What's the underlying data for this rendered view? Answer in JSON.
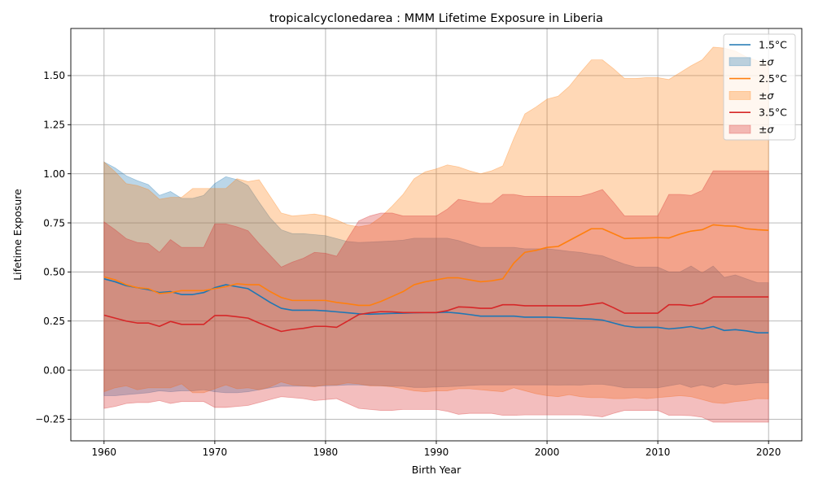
{
  "chart_data": {
    "type": "area",
    "title": "tropicalcyclonedarea : MMM Lifetime Exposure in Liberia",
    "xlabel": "Birth Year",
    "ylabel": "Lifetime Exposure",
    "xlim": [
      1957,
      2023
    ],
    "ylim": [
      -0.36,
      1.74
    ],
    "xticks": [
      1960,
      1970,
      1980,
      1990,
      2000,
      2010,
      2020
    ],
    "yticks": [
      -0.25,
      0.0,
      0.25,
      0.5,
      0.75,
      1.0,
      1.25,
      1.5
    ],
    "yticklabels": [
      "−0.25",
      "0.00",
      "0.25",
      "0.50",
      "0.75",
      "1.00",
      "1.25",
      "1.50"
    ],
    "grid": true,
    "legend_position": "top-right",
    "x": [
      1960,
      1961,
      1962,
      1963,
      1964,
      1965,
      1966,
      1967,
      1968,
      1969,
      1970,
      1971,
      1972,
      1973,
      1974,
      1975,
      1976,
      1977,
      1978,
      1979,
      1980,
      1981,
      1982,
      1983,
      1984,
      1985,
      1986,
      1987,
      1988,
      1989,
      1990,
      1991,
      1992,
      1993,
      1994,
      1995,
      1996,
      1997,
      1998,
      1999,
      2000,
      2001,
      2002,
      2003,
      2004,
      2005,
      2006,
      2007,
      2008,
      2009,
      2010,
      2011,
      2012,
      2013,
      2014,
      2015,
      2016,
      2017,
      2018,
      2019,
      2020
    ],
    "series": [
      {
        "name": "1.5°C",
        "band_name": "±σ",
        "color": "#1f77b4",
        "values": [
          0.465,
          0.45,
          0.43,
          0.42,
          0.41,
          0.395,
          0.4,
          0.385,
          0.385,
          0.395,
          0.42,
          0.435,
          0.425,
          0.415,
          0.38,
          0.345,
          0.315,
          0.305,
          0.305,
          0.305,
          0.302,
          0.297,
          0.292,
          0.287,
          0.285,
          0.287,
          0.289,
          0.29,
          0.292,
          0.293,
          0.293,
          0.295,
          0.29,
          0.283,
          0.275,
          0.275,
          0.275,
          0.275,
          0.27,
          0.27,
          0.27,
          0.268,
          0.265,
          0.262,
          0.26,
          0.255,
          0.24,
          0.225,
          0.218,
          0.218,
          0.218,
          0.21,
          0.215,
          0.222,
          0.21,
          0.222,
          0.202,
          0.206,
          0.2,
          0.19,
          0.19
        ],
        "upper": [
          1.06,
          1.03,
          0.99,
          0.965,
          0.945,
          0.89,
          0.91,
          0.875,
          0.875,
          0.89,
          0.95,
          0.985,
          0.97,
          0.94,
          0.855,
          0.775,
          0.715,
          0.695,
          0.695,
          0.69,
          0.685,
          0.67,
          0.655,
          0.65,
          0.652,
          0.655,
          0.658,
          0.662,
          0.672,
          0.672,
          0.672,
          0.672,
          0.66,
          0.642,
          0.625,
          0.625,
          0.625,
          0.625,
          0.618,
          0.618,
          0.618,
          0.612,
          0.605,
          0.6,
          0.59,
          0.582,
          0.56,
          0.54,
          0.525,
          0.525,
          0.525,
          0.5,
          0.5,
          0.53,
          0.495,
          0.53,
          0.472,
          0.485,
          0.465,
          0.445,
          0.445
        ],
        "lower": [
          -0.13,
          -0.13,
          -0.125,
          -0.12,
          -0.115,
          -0.105,
          -0.11,
          -0.105,
          -0.105,
          -0.1,
          -0.11,
          -0.115,
          -0.115,
          -0.11,
          -0.1,
          -0.09,
          -0.082,
          -0.082,
          -0.082,
          -0.082,
          -0.08,
          -0.078,
          -0.075,
          -0.075,
          -0.078,
          -0.08,
          -0.082,
          -0.082,
          -0.088,
          -0.088,
          -0.086,
          -0.084,
          -0.082,
          -0.078,
          -0.075,
          -0.075,
          -0.075,
          -0.075,
          -0.075,
          -0.075,
          -0.075,
          -0.076,
          -0.075,
          -0.076,
          -0.072,
          -0.072,
          -0.08,
          -0.09,
          -0.09,
          -0.09,
          -0.09,
          -0.08,
          -0.07,
          -0.088,
          -0.075,
          -0.088,
          -0.068,
          -0.075,
          -0.07,
          -0.065,
          -0.065
        ]
      },
      {
        "name": "2.5°C",
        "band_name": "±σ",
        "color": "#ff7f0e",
        "values": [
          0.475,
          0.46,
          0.435,
          0.42,
          0.415,
          0.39,
          0.395,
          0.405,
          0.405,
          0.405,
          0.415,
          0.425,
          0.44,
          0.435,
          0.435,
          0.4,
          0.37,
          0.355,
          0.355,
          0.355,
          0.355,
          0.345,
          0.338,
          0.33,
          0.33,
          0.35,
          0.375,
          0.4,
          0.435,
          0.45,
          0.46,
          0.47,
          0.47,
          0.46,
          0.45,
          0.455,
          0.465,
          0.545,
          0.6,
          0.61,
          0.625,
          0.63,
          0.66,
          0.69,
          0.72,
          0.72,
          0.695,
          0.67,
          0.672,
          0.673,
          0.675,
          0.673,
          0.693,
          0.708,
          0.715,
          0.74,
          0.735,
          0.733,
          0.72,
          0.715,
          0.712
        ],
        "upper": [
          1.06,
          1.01,
          0.95,
          0.94,
          0.92,
          0.87,
          0.88,
          0.88,
          0.925,
          0.925,
          0.925,
          0.925,
          0.975,
          0.96,
          0.97,
          0.885,
          0.8,
          0.785,
          0.79,
          0.795,
          0.785,
          0.765,
          0.74,
          0.73,
          0.74,
          0.78,
          0.835,
          0.895,
          0.975,
          1.01,
          1.025,
          1.045,
          1.035,
          1.015,
          1.0,
          1.015,
          1.04,
          1.18,
          1.305,
          1.34,
          1.38,
          1.395,
          1.445,
          1.515,
          1.58,
          1.58,
          1.535,
          1.485,
          1.485,
          1.49,
          1.49,
          1.48,
          1.515,
          1.55,
          1.58,
          1.645,
          1.64,
          1.625,
          1.595,
          1.575,
          1.57
        ],
        "lower": [
          -0.11,
          -0.09,
          -0.08,
          -0.1,
          -0.09,
          -0.09,
          -0.09,
          -0.07,
          -0.115,
          -0.115,
          -0.095,
          -0.075,
          -0.095,
          -0.09,
          -0.1,
          -0.085,
          -0.06,
          -0.075,
          -0.08,
          -0.085,
          -0.075,
          -0.075,
          -0.065,
          -0.07,
          -0.08,
          -0.08,
          -0.085,
          -0.095,
          -0.105,
          -0.11,
          -0.105,
          -0.105,
          -0.095,
          -0.095,
          -0.1,
          -0.105,
          -0.11,
          -0.09,
          -0.105,
          -0.12,
          -0.13,
          -0.135,
          -0.125,
          -0.135,
          -0.14,
          -0.14,
          -0.145,
          -0.145,
          -0.14,
          -0.145,
          -0.14,
          -0.135,
          -0.13,
          -0.135,
          -0.15,
          -0.165,
          -0.17,
          -0.16,
          -0.155,
          -0.145,
          -0.146
        ]
      },
      {
        "name": "3.5°C",
        "band_name": "±σ",
        "color": "#d62728",
        "values": [
          0.28,
          0.265,
          0.25,
          0.24,
          0.24,
          0.223,
          0.248,
          0.233,
          0.233,
          0.233,
          0.278,
          0.278,
          0.272,
          0.265,
          0.24,
          0.218,
          0.197,
          0.207,
          0.213,
          0.223,
          0.223,
          0.218,
          0.25,
          0.283,
          0.292,
          0.298,
          0.297,
          0.293,
          0.293,
          0.293,
          0.293,
          0.303,
          0.322,
          0.32,
          0.315,
          0.315,
          0.333,
          0.333,
          0.328,
          0.328,
          0.328,
          0.328,
          0.328,
          0.328,
          0.335,
          0.343,
          0.318,
          0.29,
          0.29,
          0.29,
          0.29,
          0.333,
          0.333,
          0.328,
          0.34,
          0.373,
          0.373,
          0.373,
          0.373,
          0.373,
          0.373
        ],
        "upper": [
          0.755,
          0.715,
          0.67,
          0.65,
          0.645,
          0.6,
          0.665,
          0.625,
          0.625,
          0.625,
          0.745,
          0.745,
          0.73,
          0.71,
          0.645,
          0.585,
          0.525,
          0.55,
          0.57,
          0.6,
          0.595,
          0.58,
          0.67,
          0.76,
          0.785,
          0.8,
          0.8,
          0.785,
          0.785,
          0.785,
          0.785,
          0.82,
          0.87,
          0.86,
          0.85,
          0.85,
          0.895,
          0.895,
          0.885,
          0.885,
          0.885,
          0.885,
          0.885,
          0.885,
          0.9,
          0.92,
          0.855,
          0.785,
          0.785,
          0.785,
          0.785,
          0.895,
          0.895,
          0.89,
          0.915,
          1.015,
          1.015,
          1.015,
          1.015,
          1.015,
          1.015
        ],
        "lower": [
          -0.195,
          -0.185,
          -0.17,
          -0.165,
          -0.165,
          -0.155,
          -0.17,
          -0.16,
          -0.16,
          -0.16,
          -0.19,
          -0.19,
          -0.185,
          -0.18,
          -0.165,
          -0.15,
          -0.135,
          -0.14,
          -0.145,
          -0.155,
          -0.15,
          -0.145,
          -0.17,
          -0.195,
          -0.2,
          -0.205,
          -0.205,
          -0.2,
          -0.2,
          -0.2,
          -0.2,
          -0.21,
          -0.225,
          -0.22,
          -0.22,
          -0.22,
          -0.23,
          -0.23,
          -0.228,
          -0.228,
          -0.228,
          -0.228,
          -0.228,
          -0.228,
          -0.232,
          -0.238,
          -0.22,
          -0.205,
          -0.205,
          -0.205,
          -0.205,
          -0.23,
          -0.23,
          -0.232,
          -0.24,
          -0.265,
          -0.265,
          -0.265,
          -0.265,
          -0.265,
          -0.265
        ]
      }
    ]
  }
}
